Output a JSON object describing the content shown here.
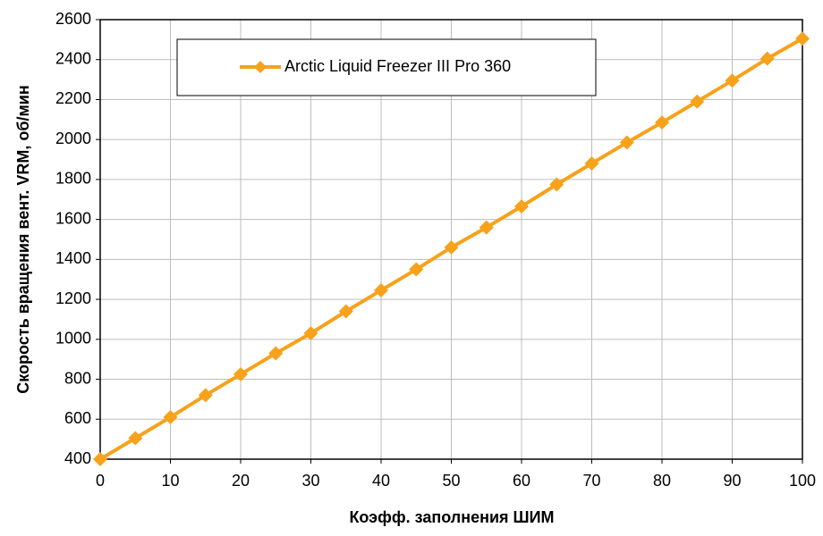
{
  "chart_data": {
    "type": "line",
    "x_label": "Коэфф. заполнения ШИМ",
    "y_label": "Скорость вращения вент. VRM, об/мин",
    "x": [
      0,
      5,
      10,
      15,
      20,
      25,
      30,
      35,
      40,
      45,
      50,
      55,
      60,
      65,
      70,
      75,
      80,
      85,
      90,
      95,
      100
    ],
    "series": [
      {
        "name": "Arctic Liquid Freezer III Pro 360",
        "color": "#f7a21b",
        "values": [
          400,
          505,
          610,
          720,
          825,
          930,
          1030,
          1140,
          1245,
          1350,
          1460,
          1560,
          1665,
          1775,
          1880,
          1985,
          2085,
          2190,
          2295,
          2405,
          2505
        ]
      }
    ],
    "xlim": [
      0,
      100
    ],
    "xticks": [
      0,
      10,
      20,
      30,
      40,
      50,
      60,
      70,
      80,
      90,
      100
    ],
    "ylim": [
      400,
      2600
    ],
    "yticks": [
      400,
      600,
      800,
      1000,
      1200,
      1400,
      1600,
      1800,
      2000,
      2200,
      2400,
      2600
    ],
    "grid": true,
    "legend": "top-left"
  }
}
